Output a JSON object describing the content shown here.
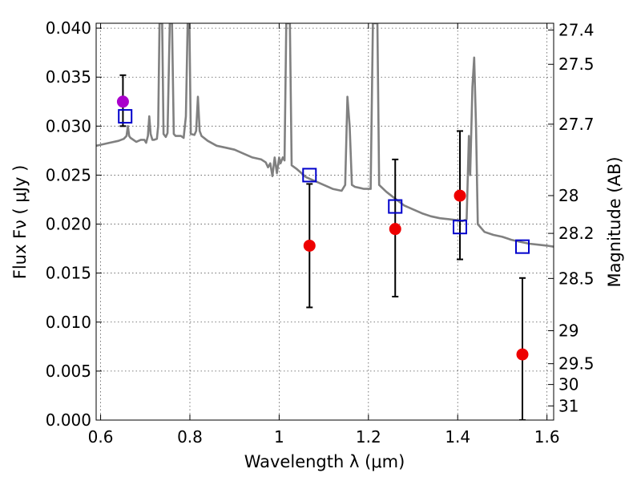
{
  "chart_data": {
    "type": "scatter",
    "xlabel": "Wavelength  λ (μm)",
    "ylabel": "Flux  Fν  ( μJy )",
    "ylabel_right": "Magnitude (AB)",
    "xlim": [
      0.59,
      1.615
    ],
    "ylim": [
      0.0,
      0.0405
    ],
    "grid": true,
    "x_ticks": [
      {
        "value": 0.6,
        "label": "0.6"
      },
      {
        "value": 0.8,
        "label": "0.8"
      },
      {
        "value": 1.0,
        "label": "1"
      },
      {
        "value": 1.2,
        "label": "1.2"
      },
      {
        "value": 1.4,
        "label": "1.4"
      },
      {
        "value": 1.6,
        "label": "1.6"
      }
    ],
    "y_ticks": [
      {
        "value": 0.0,
        "label": "0.000"
      },
      {
        "value": 0.005,
        "label": "0.005"
      },
      {
        "value": 0.01,
        "label": "0.010"
      },
      {
        "value": 0.015,
        "label": "0.015"
      },
      {
        "value": 0.02,
        "label": "0.020"
      },
      {
        "value": 0.025,
        "label": "0.025"
      },
      {
        "value": 0.03,
        "label": "0.030"
      },
      {
        "value": 0.035,
        "label": "0.035"
      },
      {
        "value": 0.04,
        "label": "0.040"
      }
    ],
    "right_ticks": [
      {
        "value": 27.4,
        "label": "27.4"
      },
      {
        "value": 27.5,
        "label": "27.5"
      },
      {
        "value": 27.7,
        "label": "27.7"
      },
      {
        "value": 28.0,
        "label": "28"
      },
      {
        "value": 28.2,
        "label": "28.2"
      },
      {
        "value": 28.5,
        "label": "28.5"
      },
      {
        "value": 29.0,
        "label": "29"
      },
      {
        "value": 29.5,
        "label": "29.5"
      },
      {
        "value": 30.0,
        "label": "30"
      },
      {
        "value": 31.0,
        "label": "31"
      }
    ],
    "series": [
      {
        "kind": "line",
        "color": "#808080",
        "points": [
          [
            0.59,
            0.028
          ],
          [
            0.6,
            0.0281
          ],
          [
            0.62,
            0.0283
          ],
          [
            0.64,
            0.0285
          ],
          [
            0.652,
            0.0287
          ],
          [
            0.658,
            0.029
          ],
          [
            0.661,
            0.03
          ],
          [
            0.664,
            0.029
          ],
          [
            0.667,
            0.0288
          ],
          [
            0.68,
            0.0284
          ],
          [
            0.69,
            0.0286
          ],
          [
            0.698,
            0.0286
          ],
          [
            0.702,
            0.0283
          ],
          [
            0.706,
            0.029
          ],
          [
            0.709,
            0.031
          ],
          [
            0.712,
            0.0292
          ],
          [
            0.716,
            0.0286
          ],
          [
            0.72,
            0.0286
          ],
          [
            0.726,
            0.0287
          ],
          [
            0.729,
            0.03
          ],
          [
            0.732,
            0.0405
          ],
          [
            0.738,
            0.0405
          ],
          [
            0.741,
            0.0292
          ],
          [
            0.746,
            0.0289
          ],
          [
            0.75,
            0.0293
          ],
          [
            0.755,
            0.0405
          ],
          [
            0.76,
            0.0405
          ],
          [
            0.764,
            0.0292
          ],
          [
            0.768,
            0.029
          ],
          [
            0.78,
            0.029
          ],
          [
            0.786,
            0.0288
          ],
          [
            0.791,
            0.031
          ],
          [
            0.795,
            0.0405
          ],
          [
            0.799,
            0.0405
          ],
          [
            0.802,
            0.0292
          ],
          [
            0.81,
            0.0291
          ],
          [
            0.814,
            0.0295
          ],
          [
            0.818,
            0.033
          ],
          [
            0.822,
            0.0295
          ],
          [
            0.826,
            0.029
          ],
          [
            0.84,
            0.0285
          ],
          [
            0.86,
            0.028
          ],
          [
            0.88,
            0.0278
          ],
          [
            0.9,
            0.0276
          ],
          [
            0.92,
            0.0272
          ],
          [
            0.94,
            0.0268
          ],
          [
            0.96,
            0.0266
          ],
          [
            0.97,
            0.0263
          ],
          [
            0.975,
            0.0258
          ],
          [
            0.98,
            0.0262
          ],
          [
            0.985,
            0.0249
          ],
          [
            0.99,
            0.0268
          ],
          [
            0.995,
            0.0252
          ],
          [
            1.0,
            0.0268
          ],
          [
            1.003,
            0.0262
          ],
          [
            1.008,
            0.0268
          ],
          [
            1.012,
            0.0265
          ],
          [
            1.016,
            0.0405
          ],
          [
            1.024,
            0.0405
          ],
          [
            1.028,
            0.026
          ],
          [
            1.04,
            0.0256
          ],
          [
            1.05,
            0.0252
          ],
          [
            1.06,
            0.0248
          ],
          [
            1.08,
            0.0244
          ],
          [
            1.1,
            0.024
          ],
          [
            1.12,
            0.0236
          ],
          [
            1.14,
            0.0234
          ],
          [
            1.148,
            0.024
          ],
          [
            1.153,
            0.033
          ],
          [
            1.158,
            0.03
          ],
          [
            1.163,
            0.024
          ],
          [
            1.17,
            0.0238
          ],
          [
            1.18,
            0.0237
          ],
          [
            1.19,
            0.0236
          ],
          [
            1.205,
            0.0236
          ],
          [
            1.21,
            0.0405
          ],
          [
            1.22,
            0.0405
          ],
          [
            1.224,
            0.024
          ],
          [
            1.24,
            0.0233
          ],
          [
            1.26,
            0.0226
          ],
          [
            1.28,
            0.0219
          ],
          [
            1.3,
            0.0215
          ],
          [
            1.32,
            0.0211
          ],
          [
            1.34,
            0.0208
          ],
          [
            1.36,
            0.0206
          ],
          [
            1.38,
            0.0205
          ],
          [
            1.4,
            0.0204
          ],
          [
            1.41,
            0.0203
          ],
          [
            1.42,
            0.0205
          ],
          [
            1.425,
            0.029
          ],
          [
            1.428,
            0.025
          ],
          [
            1.433,
            0.034
          ],
          [
            1.437,
            0.037
          ],
          [
            1.441,
            0.03
          ],
          [
            1.445,
            0.02
          ],
          [
            1.46,
            0.0192
          ],
          [
            1.48,
            0.0189
          ],
          [
            1.5,
            0.0187
          ],
          [
            1.52,
            0.0184
          ],
          [
            1.54,
            0.0182
          ],
          [
            1.56,
            0.018
          ],
          [
            1.58,
            0.0179
          ],
          [
            1.6,
            0.0178
          ],
          [
            1.615,
            0.0177
          ]
        ]
      },
      {
        "kind": "errorbar",
        "color": "#000000",
        "points": [
          {
            "x": 0.65,
            "y_low": 0.03,
            "y_high": 0.0352
          },
          {
            "x": 1.068,
            "y_low": 0.0115,
            "y_high": 0.0241
          },
          {
            "x": 1.26,
            "y_low": 0.0126,
            "y_high": 0.0266
          },
          {
            "x": 1.405,
            "y_low": 0.0164,
            "y_high": 0.0295
          },
          {
            "x": 1.545,
            "y_low": 0.0,
            "y_high": 0.0145
          }
        ]
      },
      {
        "kind": "markers",
        "marker": "square",
        "color": "#0000cc",
        "points": [
          [
            0.655,
            0.031
          ],
          [
            1.068,
            0.025
          ],
          [
            1.26,
            0.0218
          ],
          [
            1.405,
            0.0197
          ],
          [
            1.545,
            0.0177
          ]
        ]
      },
      {
        "kind": "markers",
        "marker": "circle",
        "color": "#ee0000",
        "points": [
          [
            1.068,
            0.0178
          ],
          [
            1.26,
            0.0195
          ],
          [
            1.405,
            0.0229
          ],
          [
            1.545,
            0.0067
          ]
        ]
      },
      {
        "kind": "markers",
        "marker": "circle",
        "color": "#aa00cc",
        "points": [
          [
            0.65,
            0.0325
          ]
        ]
      }
    ]
  }
}
